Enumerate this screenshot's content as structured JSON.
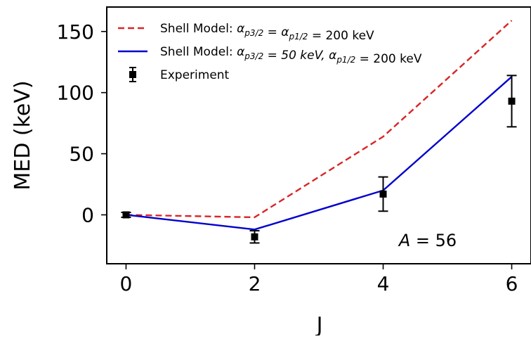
{
  "chart_data": {
    "type": "line",
    "xlabel": "J",
    "ylabel": "MED (keV)",
    "xlim": [
      -0.3,
      6.3
    ],
    "ylim": [
      -40,
      170
    ],
    "x_ticks": [
      0,
      2,
      4,
      6
    ],
    "y_ticks": [
      0,
      50,
      100,
      150
    ],
    "legend_position": "top-left",
    "annotation": {
      "prefix": "A",
      "text": " = 56",
      "x": 4.9,
      "y": -20
    },
    "series": [
      {
        "name_prefix": "Shell Model: ",
        "name_math": "α_{p3/2} = α_{p1/2} = 200 keV",
        "style": "dashed",
        "color": "#d62728",
        "x": [
          0,
          2,
          4,
          6
        ],
        "y": [
          0,
          -2,
          64,
          159
        ]
      },
      {
        "name_prefix": "Shell Model: ",
        "name_math": "α_{p3/2} = 50 keV, α_{p1/2} = 200 keV",
        "style": "solid",
        "color": "#0000cd",
        "x": [
          0,
          2,
          4,
          6
        ],
        "y": [
          0,
          -12,
          20,
          113
        ]
      },
      {
        "name": "Experiment",
        "style": "errorbar",
        "color": "#000000",
        "x": [
          0,
          2,
          4,
          6
        ],
        "y": [
          0,
          -18,
          17,
          93
        ],
        "yerr": [
          2,
          5,
          14,
          21
        ]
      }
    ]
  }
}
